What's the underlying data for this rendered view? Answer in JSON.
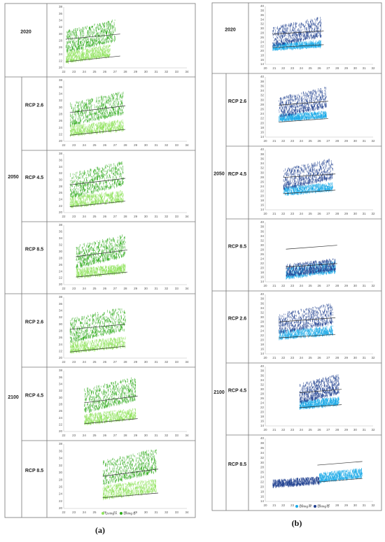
{
  "panels": [
    {
      "id": "a",
      "caption": "(a)",
      "legend": [
        {
          "name": "Living A",
          "color": "#8ee35a"
        },
        {
          "name": "Living B",
          "color": "#2eaa1a"
        }
      ],
      "rows": [
        {
          "period": "2020",
          "scenario": ""
        },
        {
          "period": "2050",
          "scenario": "RCP 2.6"
        },
        {
          "period": "2050",
          "scenario": "RCP 4.5"
        },
        {
          "period": "2050",
          "scenario": "RCP 8.5"
        },
        {
          "period": "2100",
          "scenario": "RCP 2.6"
        },
        {
          "period": "2100",
          "scenario": "RCP 4.5"
        },
        {
          "period": "2100",
          "scenario": "RCP 8.5"
        }
      ]
    },
    {
      "id": "b",
      "caption": "(b)",
      "legend": [
        {
          "name": "Living A",
          "color": "#1aa9e8"
        },
        {
          "name": "Living B",
          "color": "#1f3f8f"
        }
      ],
      "rows": [
        {
          "period": "2020",
          "scenario": ""
        },
        {
          "period": "2050",
          "scenario": "RCP 2.6"
        },
        {
          "period": "2050",
          "scenario": "RCP 4.5"
        },
        {
          "period": "2050",
          "scenario": "RCP 8.5"
        },
        {
          "period": "2100",
          "scenario": "RCP 2.6"
        },
        {
          "period": "2100",
          "scenario": "RCP 4.5"
        },
        {
          "period": "2100",
          "scenario": "RCP 8.5"
        }
      ]
    }
  ],
  "chart_data": [
    {
      "panel": "a",
      "row": "2020",
      "type": "scatter",
      "xlim": [
        22,
        34
      ],
      "ylim": [
        20,
        38
      ],
      "xticks": [
        22,
        23,
        24,
        25,
        26,
        27,
        28,
        29,
        30,
        31,
        32,
        33,
        34
      ],
      "yticks": [
        20,
        22,
        24,
        26,
        28,
        30,
        32,
        34,
        36,
        38
      ],
      "series": [
        {
          "name": "Living A",
          "x_range": [
            22.2,
            26.5
          ],
          "y_range": [
            22.0,
            27.0
          ]
        },
        {
          "name": "Living B",
          "x_range": [
            22.2,
            27.0
          ],
          "y_range": [
            25.0,
            34.5
          ]
        }
      ],
      "lines": [
        {
          "x": [
            22.2,
            27.5
          ],
          "y": [
            21.8,
            23.5
          ]
        },
        {
          "x": [
            22.2,
            27.5
          ],
          "y": [
            28.5,
            30.0
          ]
        }
      ]
    },
    {
      "panel": "a",
      "row": "2050 RCP 2.6",
      "type": "scatter",
      "xlim": [
        22,
        34
      ],
      "ylim": [
        20,
        38
      ],
      "xticks": [
        22,
        23,
        24,
        25,
        26,
        27,
        28,
        29,
        30,
        31,
        32,
        33,
        34
      ],
      "yticks": [
        20,
        22,
        24,
        26,
        28,
        30,
        32,
        34,
        36,
        38
      ],
      "series": [
        {
          "name": "Living A",
          "x_range": [
            22.6,
            27.8
          ],
          "y_range": [
            22.0,
            26.5
          ]
        },
        {
          "name": "Living B",
          "x_range": [
            22.6,
            27.8
          ],
          "y_range": [
            25.0,
            35.0
          ]
        }
      ],
      "lines": [
        {
          "x": [
            22.6,
            28.0
          ],
          "y": [
            21.8,
            23.5
          ]
        },
        {
          "x": [
            22.6,
            28.0
          ],
          "y": [
            28.5,
            30.5
          ]
        }
      ]
    },
    {
      "panel": "a",
      "row": "2050 RCP 4.5",
      "type": "scatter",
      "xlim": [
        22,
        34
      ],
      "ylim": [
        20,
        38
      ],
      "xticks": [
        22,
        23,
        24,
        25,
        26,
        27,
        28,
        29,
        30,
        31,
        32,
        33,
        34
      ],
      "yticks": [
        20,
        22,
        24,
        26,
        28,
        30,
        32,
        34,
        36,
        38
      ],
      "series": [
        {
          "name": "Living A",
          "x_range": [
            22.6,
            27.8
          ],
          "y_range": [
            22.0,
            27.0
          ]
        },
        {
          "name": "Living B",
          "x_range": [
            22.6,
            27.8
          ],
          "y_range": [
            25.0,
            36.0
          ]
        }
      ],
      "lines": [
        {
          "x": [
            22.6,
            28.0
          ],
          "y": [
            21.8,
            23.5
          ]
        },
        {
          "x": [
            22.6,
            28.0
          ],
          "y": [
            28.5,
            30.5
          ]
        }
      ]
    },
    {
      "panel": "a",
      "row": "2050 RCP 8.5",
      "type": "scatter",
      "xlim": [
        22,
        34
      ],
      "ylim": [
        20,
        38
      ],
      "xticks": [
        22,
        23,
        24,
        25,
        26,
        27,
        28,
        29,
        30,
        31,
        32,
        33,
        34
      ],
      "yticks": [
        20,
        22,
        24,
        26,
        28,
        30,
        32,
        34,
        36,
        38
      ],
      "series": [
        {
          "name": "Living A",
          "x_range": [
            23.2,
            28.0
          ],
          "y_range": [
            22.5,
            26.5
          ]
        },
        {
          "name": "Living B",
          "x_range": [
            23.2,
            28.0
          ],
          "y_range": [
            25.5,
            35.5
          ]
        }
      ],
      "lines": [
        {
          "x": [
            23.2,
            28.2
          ],
          "y": [
            22.3,
            23.8
          ]
        },
        {
          "x": [
            23.2,
            28.2
          ],
          "y": [
            28.5,
            30.5
          ]
        }
      ]
    },
    {
      "panel": "a",
      "row": "2100 RCP 2.6",
      "type": "scatter",
      "xlim": [
        22,
        34
      ],
      "ylim": [
        20,
        38
      ],
      "xticks": [
        22,
        23,
        24,
        25,
        26,
        27,
        28,
        29,
        30,
        31,
        32,
        33,
        34
      ],
      "yticks": [
        20,
        22,
        24,
        26,
        28,
        30,
        32,
        34,
        36,
        38
      ],
      "series": [
        {
          "name": "Living A",
          "x_range": [
            22.6,
            28.0
          ],
          "y_range": [
            22.0,
            26.5
          ]
        },
        {
          "name": "Living B",
          "x_range": [
            22.6,
            28.0
          ],
          "y_range": [
            25.0,
            35.5
          ]
        }
      ],
      "lines": [
        {
          "x": [
            22.6,
            28.0
          ],
          "y": [
            21.8,
            23.5
          ]
        },
        {
          "x": [
            22.6,
            28.0
          ],
          "y": [
            28.5,
            30.0
          ]
        }
      ]
    },
    {
      "panel": "a",
      "row": "2100 RCP 4.5",
      "type": "scatter",
      "xlim": [
        22,
        34
      ],
      "ylim": [
        20,
        38
      ],
      "xticks": [
        22,
        23,
        24,
        25,
        26,
        27,
        28,
        29,
        30,
        31,
        32,
        33,
        34
      ],
      "yticks": [
        20,
        22,
        24,
        26,
        28,
        30,
        32,
        34,
        36,
        38
      ],
      "series": [
        {
          "name": "Living A",
          "x_range": [
            24.0,
            29.0
          ],
          "y_range": [
            22.5,
            27.0
          ]
        },
        {
          "name": "Living B",
          "x_range": [
            24.0,
            29.0
          ],
          "y_range": [
            26.0,
            36.5
          ]
        }
      ],
      "lines": [
        {
          "x": [
            24.0,
            29.2
          ],
          "y": [
            22.3,
            23.8
          ]
        },
        {
          "x": [
            24.0,
            29.2
          ],
          "y": [
            28.5,
            30.5
          ]
        }
      ]
    },
    {
      "panel": "a",
      "row": "2100 RCP 8.5",
      "type": "scatter",
      "xlim": [
        22,
        34
      ],
      "ylim": [
        20,
        38
      ],
      "xticks": [
        22,
        23,
        24,
        25,
        26,
        27,
        28,
        29,
        30,
        31,
        32,
        33,
        34
      ],
      "yticks": [
        20,
        22,
        24,
        26,
        28,
        30,
        32,
        34,
        36,
        38
      ],
      "series": [
        {
          "name": "Living A",
          "x_range": [
            25.8,
            31.0
          ],
          "y_range": [
            23.0,
            28.5
          ]
        },
        {
          "name": "Living B",
          "x_range": [
            25.8,
            31.0
          ],
          "y_range": [
            27.0,
            37.0
          ]
        }
      ],
      "lines": [
        {
          "x": [
            25.8,
            31.2
          ],
          "y": [
            23.0,
            24.3
          ]
        },
        {
          "x": [
            25.8,
            31.2
          ],
          "y": [
            29.0,
            31.0
          ]
        }
      ]
    },
    {
      "panel": "b",
      "row": "2020",
      "type": "scatter",
      "xlim": [
        20,
        32
      ],
      "ylim": [
        14,
        40
      ],
      "xticks": [
        20,
        21,
        22,
        23,
        24,
        25,
        26,
        27,
        28,
        29,
        30,
        31,
        32
      ],
      "yticks": [
        14,
        16,
        18,
        20,
        22,
        24,
        26,
        28,
        30,
        32,
        34,
        36,
        38,
        40
      ],
      "series": [
        {
          "name": "Living A",
          "x_range": [
            20.8,
            26.2
          ],
          "y_range": [
            21.0,
            25.0
          ]
        },
        {
          "name": "Living B",
          "x_range": [
            20.8,
            26.2
          ],
          "y_range": [
            22.5,
            35.5
          ]
        }
      ],
      "lines": [
        {
          "x": [
            20.8,
            26.5
          ],
          "y": [
            21.5,
            22.8
          ]
        },
        {
          "x": [
            20.8,
            26.5
          ],
          "y": [
            27.5,
            29.0
          ]
        }
      ]
    },
    {
      "panel": "b",
      "row": "2050 RCP 2.6",
      "type": "scatter",
      "xlim": [
        20,
        32
      ],
      "ylim": [
        14,
        40
      ],
      "xticks": [
        20,
        21,
        22,
        23,
        24,
        25,
        26,
        27,
        28,
        29,
        30,
        31,
        32
      ],
      "yticks": [
        14,
        16,
        18,
        20,
        22,
        24,
        26,
        28,
        30,
        32,
        34,
        36,
        38,
        40
      ],
      "series": [
        {
          "name": "Living A",
          "x_range": [
            21.5,
            26.8
          ],
          "y_range": [
            21.5,
            25.5
          ]
        },
        {
          "name": "Living B",
          "x_range": [
            21.5,
            26.8
          ],
          "y_range": [
            23.0,
            36.0
          ]
        }
      ],
      "lines": [
        {
          "x": [
            21.5,
            27.0
          ],
          "y": [
            20.5,
            22.0
          ]
        },
        {
          "x": [
            21.5,
            27.0
          ],
          "y": [
            27.8,
            29.5
          ]
        }
      ]
    },
    {
      "panel": "b",
      "row": "2050 RCP 4.5",
      "type": "scatter",
      "xlim": [
        20,
        32
      ],
      "ylim": [
        14,
        40
      ],
      "xticks": [
        20,
        21,
        22,
        23,
        24,
        25,
        26,
        27,
        28,
        29,
        30,
        31,
        32
      ],
      "yticks": [
        14,
        16,
        18,
        20,
        22,
        24,
        26,
        28,
        30,
        32,
        34,
        36,
        38,
        40
      ],
      "series": [
        {
          "name": "Living A",
          "x_range": [
            22.0,
            27.5
          ],
          "y_range": [
            21.0,
            26.0
          ]
        },
        {
          "name": "Living B",
          "x_range": [
            22.0,
            27.5
          ],
          "y_range": [
            23.5,
            36.5
          ]
        }
      ],
      "lines": [
        {
          "x": [
            22.0,
            27.8
          ],
          "y": [
            21.0,
            22.5
          ]
        },
        {
          "x": [
            22.0,
            27.8
          ],
          "y": [
            28.0,
            29.5
          ]
        }
      ]
    },
    {
      "panel": "b",
      "row": "2050 RCP 8.5",
      "type": "scatter",
      "xlim": [
        20,
        32
      ],
      "ylim": [
        14,
        40
      ],
      "xticks": [
        20,
        21,
        22,
        23,
        24,
        25,
        26,
        27,
        28,
        29,
        30,
        31,
        32
      ],
      "yticks": [
        14,
        16,
        18,
        20,
        22,
        24,
        26,
        28,
        30,
        32,
        34,
        36,
        38,
        40
      ],
      "series": [
        {
          "name": "Living A",
          "x_range": [
            22.3,
            27.8
          ],
          "y_range": [
            16.0,
            23.5
          ]
        },
        {
          "name": "Living B",
          "x_range": [
            22.3,
            27.8
          ],
          "y_range": [
            17.0,
            24.5
          ]
        }
      ],
      "lines": [
        {
          "x": [
            22.3,
            28.0
          ],
          "y": [
            20.5,
            22.0
          ]
        },
        {
          "x": [
            22.3,
            28.0
          ],
          "y": [
            28.3,
            30.0
          ]
        }
      ]
    },
    {
      "panel": "b",
      "row": "2100 RCP 2.6",
      "type": "scatter",
      "xlim": [
        20,
        32
      ],
      "ylim": [
        14,
        40
      ],
      "xticks": [
        20,
        21,
        22,
        23,
        24,
        25,
        26,
        27,
        28,
        29,
        30,
        31,
        32
      ],
      "yticks": [
        14,
        16,
        18,
        20,
        22,
        24,
        26,
        28,
        30,
        32,
        34,
        36,
        38,
        40
      ],
      "series": [
        {
          "name": "Living A",
          "x_range": [
            21.5,
            27.5
          ],
          "y_range": [
            21.0,
            26.5
          ]
        },
        {
          "name": "Living B",
          "x_range": [
            21.5,
            27.5
          ],
          "y_range": [
            23.5,
            36.5
          ]
        }
      ],
      "lines": [
        {
          "x": [
            21.5,
            27.8
          ],
          "y": [
            21.0,
            22.5
          ]
        },
        {
          "x": [
            21.5,
            27.8
          ],
          "y": [
            28.0,
            29.8
          ]
        }
      ]
    },
    {
      "panel": "b",
      "row": "2100 RCP 4.5",
      "type": "scatter",
      "xlim": [
        20,
        32
      ],
      "ylim": [
        14,
        40
      ],
      "xticks": [
        20,
        21,
        22,
        23,
        24,
        25,
        26,
        27,
        28,
        29,
        30,
        31,
        32
      ],
      "yticks": [
        14,
        16,
        18,
        20,
        22,
        24,
        26,
        28,
        30,
        32,
        34,
        36,
        38,
        40
      ],
      "series": [
        {
          "name": "Living A",
          "x_range": [
            23.8,
            28.2
          ],
          "y_range": [
            22.0,
            27.0
          ]
        },
        {
          "name": "Living B",
          "x_range": [
            23.8,
            28.2
          ],
          "y_range": [
            24.5,
            37.0
          ]
        }
      ],
      "lines": [
        {
          "x": [
            23.8,
            28.5
          ],
          "y": [
            22.0,
            23.3
          ]
        },
        {
          "x": [
            23.8,
            28.5
          ],
          "y": [
            28.5,
            30.0
          ]
        }
      ]
    },
    {
      "panel": "b",
      "row": "2100 RCP 8.5",
      "type": "scatter",
      "xlim": [
        20,
        32
      ],
      "ylim": [
        14,
        40
      ],
      "xticks": [
        20,
        21,
        22,
        23,
        24,
        25,
        26,
        27,
        28,
        29,
        30,
        31,
        32
      ],
      "yticks": [
        14,
        16,
        18,
        20,
        22,
        24,
        26,
        28,
        30,
        32,
        34,
        36,
        38,
        40
      ],
      "series": [
        {
          "name": "Living B",
          "x_range": [
            20.8,
            26.0
          ],
          "y_range": [
            20.5,
            24.5
          ]
        },
        {
          "name": "Living A",
          "x_range": [
            26.0,
            30.8
          ],
          "y_range": [
            22.5,
            28.0
          ]
        }
      ],
      "lines": [
        {
          "x": [
            25.8,
            30.8
          ],
          "y": [
            22.0,
            23.5
          ]
        },
        {
          "x": [
            25.8,
            30.8
          ],
          "y": [
            29.0,
            30.5
          ]
        }
      ]
    }
  ]
}
